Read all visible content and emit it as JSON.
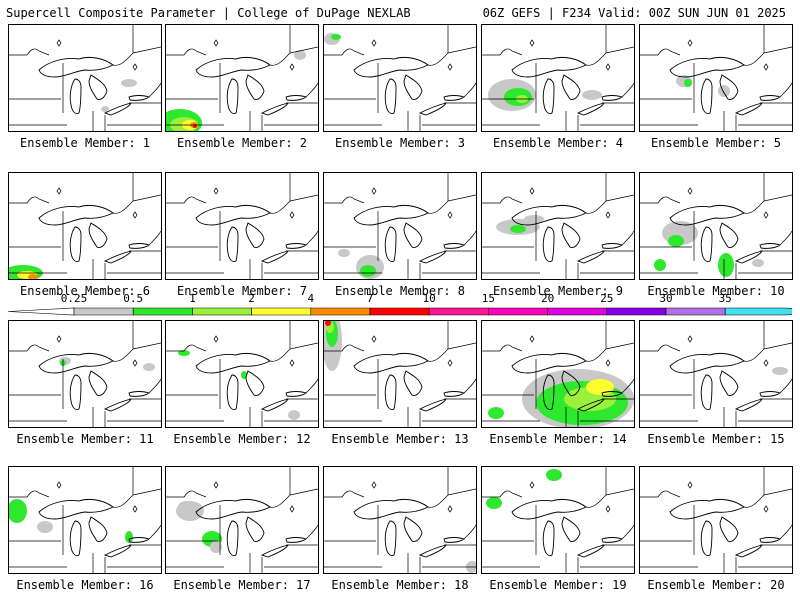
{
  "header": {
    "title": "Supercell Composite Parameter | College of DuPage NEXLAB",
    "run_info": "06Z GEFS | F234 Valid: 00Z SUN JUN 01 2025"
  },
  "colorbar": {
    "levels": [
      "0.25",
      "0.5",
      "1",
      "2",
      "4",
      "7",
      "10",
      "15",
      "20",
      "25",
      "30",
      "35"
    ],
    "colors": [
      "#c8c8c8",
      "#2ee82e",
      "#9af03a",
      "#ffff30",
      "#ff8c00",
      "#ff0000",
      "#ff1493",
      "#ff00c0",
      "#e000e0",
      "#8a00e6",
      "#b070e6",
      "#40e0f0"
    ]
  },
  "members": [
    {
      "label": "Ensemble Member: 1",
      "level": "0.25-0.5"
    },
    {
      "label": "Ensemble Member: 2",
      "level": "up to 7-10"
    },
    {
      "label": "Ensemble Member: 3",
      "level": "0.5-1"
    },
    {
      "label": "Ensemble Member: 4",
      "level": "0.5-2"
    },
    {
      "label": "Ensemble Member: 5",
      "level": "0.5-1"
    },
    {
      "label": "Ensemble Member: 6",
      "level": "up to 2-4"
    },
    {
      "label": "Ensemble Member: 7",
      "level": "none"
    },
    {
      "label": "Ensemble Member: 8",
      "level": "0.5-1"
    },
    {
      "label": "Ensemble Member: 9",
      "level": "0.5-1"
    },
    {
      "label": "Ensemble Member: 10",
      "level": "0.5-1"
    },
    {
      "label": "Ensemble Member: 11",
      "level": "0.5-1"
    },
    {
      "label": "Ensemble Member: 12",
      "level": "0.5-1"
    },
    {
      "label": "Ensemble Member: 13",
      "level": "up to 7-10"
    },
    {
      "label": "Ensemble Member: 14",
      "level": "up to 2-4"
    },
    {
      "label": "Ensemble Member: 15",
      "level": "0.25-0.5"
    },
    {
      "label": "Ensemble Member: 16",
      "level": "0.5-1"
    },
    {
      "label": "Ensemble Member: 17",
      "level": "0.5-1"
    },
    {
      "label": "Ensemble Member: 18",
      "level": "0.25-0.5"
    },
    {
      "label": "Ensemble Member: 19",
      "level": "0.5-1"
    },
    {
      "label": "Ensemble Member: 20",
      "level": "none"
    }
  ]
}
